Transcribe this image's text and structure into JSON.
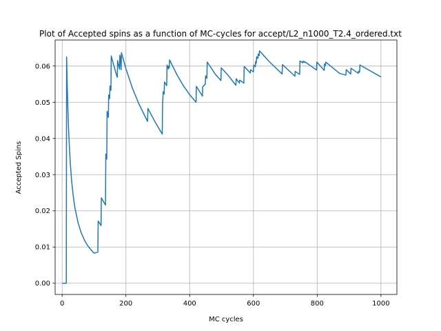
{
  "chart_data": {
    "type": "line",
    "title": "Plot of Accepted spins as a function of MC-cycles for accept/L2_n1000_T2.4_ordered.txt",
    "xlabel": "MC cycles",
    "ylabel": "Accepted Spins",
    "xlim": [
      -22,
      1050
    ],
    "ylim": [
      -0.0031,
      0.0672
    ],
    "xticks": [
      0,
      200,
      400,
      600,
      800,
      1000
    ],
    "yticks": [
      0.0,
      0.01,
      0.02,
      0.03,
      0.04,
      0.05,
      0.06
    ],
    "ytick_format": 2,
    "grid": true,
    "line_color": "#1f77b4",
    "series": [
      {
        "points": [
          [
            1,
            0
          ],
          [
            13,
            0
          ],
          [
            14,
            0.0625
          ],
          [
            15,
            0.0589
          ],
          [
            16,
            0.0545
          ],
          [
            18,
            0.0481
          ],
          [
            20,
            0.0429
          ],
          [
            25,
            0.0339
          ],
          [
            30,
            0.028
          ],
          [
            35,
            0.024
          ],
          [
            40,
            0.0209
          ],
          [
            50,
            0.0167
          ],
          [
            60,
            0.0139
          ],
          [
            70,
            0.0119
          ],
          [
            80,
            0.0104
          ],
          [
            90,
            0.0093
          ],
          [
            100,
            0.0083
          ],
          [
            112,
            0.0086
          ],
          [
            113,
            0.0172
          ],
          [
            122,
            0.0159
          ],
          [
            123,
            0.0236
          ],
          [
            136,
            0.0216
          ],
          [
            137,
            0.0357
          ],
          [
            140,
            0.0343
          ],
          [
            141,
            0.0475
          ],
          [
            145,
            0.0458
          ],
          [
            146,
            0.052
          ],
          [
            149,
            0.051
          ],
          [
            150,
            0.0545
          ],
          [
            153,
            0.0533
          ],
          [
            154,
            0.0628
          ],
          [
            160,
            0.0608
          ],
          [
            170,
            0.0577
          ],
          [
            173,
            0.0569
          ],
          [
            174,
            0.0615
          ],
          [
            180,
            0.0591
          ],
          [
            181,
            0.063
          ],
          [
            182,
            0.0627
          ],
          [
            183,
            0.0618
          ],
          [
            185,
            0.059
          ],
          [
            186,
            0.0637
          ],
          [
            200,
            0.0593
          ],
          [
            220,
            0.054
          ],
          [
            240,
            0.0497
          ],
          [
            260,
            0.0461
          ],
          [
            268,
            0.0447
          ],
          [
            269,
            0.0483
          ],
          [
            290,
            0.0448
          ],
          [
            314,
            0.0412
          ],
          [
            315,
            0.0494
          ],
          [
            317,
            0.0529
          ],
          [
            320,
            0.0523
          ],
          [
            321,
            0.0556
          ],
          [
            328,
            0.0546
          ],
          [
            329,
            0.0603
          ],
          [
            333,
            0.0592
          ],
          [
            334,
            0.06
          ],
          [
            336,
            0.0595
          ],
          [
            337,
            0.0617
          ],
          [
            360,
            0.0576
          ],
          [
            380,
            0.0546
          ],
          [
            400,
            0.0521
          ],
          [
            420,
            0.05
          ],
          [
            421,
            0.0544
          ],
          [
            440,
            0.0517
          ],
          [
            441,
            0.0543
          ],
          [
            449,
            0.055
          ],
          [
            450,
            0.0573
          ],
          [
            454,
            0.0566
          ],
          [
            455,
            0.0611
          ],
          [
            480,
            0.0578
          ],
          [
            498,
            0.056
          ],
          [
            499,
            0.0595
          ],
          [
            520,
            0.0575
          ],
          [
            545,
            0.0547
          ],
          [
            546,
            0.0565
          ],
          [
            556,
            0.0553
          ],
          [
            557,
            0.0561
          ],
          [
            570,
            0.0553
          ],
          [
            571,
            0.0599
          ],
          [
            590,
            0.0581
          ],
          [
            591,
            0.059
          ],
          [
            600,
            0.0584
          ],
          [
            601,
            0.0603
          ],
          [
            606,
            0.0598
          ],
          [
            607,
            0.0613
          ],
          [
            609,
            0.0608
          ],
          [
            610,
            0.0626
          ],
          [
            614,
            0.0621
          ],
          [
            615,
            0.0633
          ],
          [
            618,
            0.0629
          ],
          [
            619,
            0.0642
          ],
          [
            650,
            0.0612
          ],
          [
            690,
            0.0578
          ],
          [
            691,
            0.0604
          ],
          [
            730,
            0.0572
          ],
          [
            731,
            0.0585
          ],
          [
            745,
            0.0577
          ],
          [
            746,
            0.0614
          ],
          [
            755,
            0.0609
          ],
          [
            756,
            0.0614
          ],
          [
            760,
            0.061
          ],
          [
            761,
            0.0612
          ],
          [
            798,
            0.0589
          ],
          [
            799,
            0.0611
          ],
          [
            822,
            0.0588
          ],
          [
            823,
            0.0606
          ],
          [
            826,
            0.0602
          ],
          [
            827,
            0.0611
          ],
          [
            870,
            0.058
          ],
          [
            890,
            0.0575
          ],
          [
            891,
            0.059
          ],
          [
            905,
            0.0578
          ],
          [
            906,
            0.0594
          ],
          [
            929,
            0.058
          ],
          [
            930,
            0.0586
          ],
          [
            933,
            0.0583
          ],
          [
            934,
            0.0603
          ],
          [
            1000,
            0.057
          ]
        ]
      }
    ]
  }
}
